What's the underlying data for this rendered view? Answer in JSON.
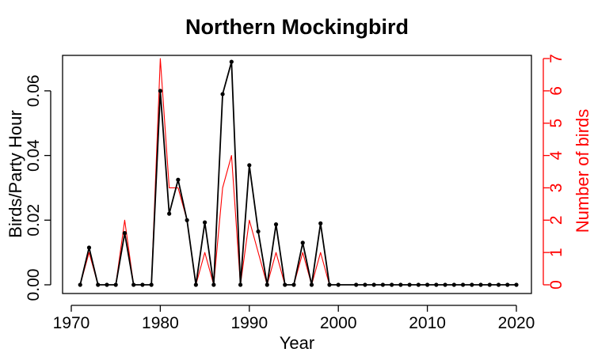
{
  "chart_data": {
    "type": "line",
    "title": "Northern Mockingbird",
    "xlabel": "Year",
    "ylabel": "Birds/Party Hour",
    "y2label": "Number of birds",
    "xlim": [
      1970,
      2020
    ],
    "ylim": [
      0,
      0.07
    ],
    "y2lim": [
      0,
      7
    ],
    "xticks": [
      1970,
      1980,
      1990,
      2000,
      2010,
      2020
    ],
    "yticks": [
      0.0,
      0.02,
      0.04,
      0.06
    ],
    "ytick_labels": [
      "0.00",
      "0.02",
      "0.04",
      "0.06"
    ],
    "y2ticks": [
      0,
      1,
      2,
      3,
      4,
      5,
      6,
      7
    ],
    "grid": false,
    "colors": {
      "primary": "#000000",
      "secondary": "#ff0000"
    },
    "series": [
      {
        "axis": "left",
        "color": "#000000",
        "markers": true,
        "points": [
          [
            1971,
            0
          ],
          [
            1972,
            0.0115
          ],
          [
            1973,
            0
          ],
          [
            1974,
            0
          ],
          [
            1975,
            0
          ],
          [
            1976,
            0.016
          ],
          [
            1977,
            0
          ],
          [
            1978,
            0
          ],
          [
            1979,
            0
          ],
          [
            1980,
            0.06
          ],
          [
            1981,
            0.022
          ],
          [
            1982,
            0.0325
          ],
          [
            1983,
            0.02
          ],
          [
            1984,
            0
          ],
          [
            1985,
            0.0193
          ],
          [
            1986,
            0
          ],
          [
            1987,
            0.059
          ],
          [
            1988,
            0.069
          ],
          [
            1989,
            0
          ],
          [
            1990,
            0.037
          ],
          [
            1991,
            0.0165
          ],
          [
            1992,
            0
          ],
          [
            1993,
            0.0187
          ],
          [
            1994,
            0
          ],
          [
            1995,
            0
          ],
          [
            1996,
            0.013
          ],
          [
            1997,
            0
          ],
          [
            1998,
            0.019
          ],
          [
            1999,
            0
          ],
          [
            2000,
            0
          ],
          [
            2002,
            0
          ],
          [
            2003,
            0
          ],
          [
            2004,
            0
          ],
          [
            2005,
            0
          ],
          [
            2006,
            0
          ],
          [
            2007,
            0
          ],
          [
            2008,
            0
          ],
          [
            2009,
            0
          ],
          [
            2010,
            0
          ],
          [
            2011,
            0
          ],
          [
            2012,
            0
          ],
          [
            2013,
            0
          ],
          [
            2014,
            0
          ],
          [
            2015,
            0
          ],
          [
            2016,
            0
          ],
          [
            2017,
            0
          ],
          [
            2018,
            0
          ],
          [
            2019,
            0
          ],
          [
            2020,
            0
          ]
        ]
      },
      {
        "axis": "right",
        "color": "#ff0000",
        "markers": false,
        "points": [
          [
            1971,
            0
          ],
          [
            1972,
            1
          ],
          [
            1973,
            0
          ],
          [
            1974,
            0
          ],
          [
            1975,
            0
          ],
          [
            1976,
            2
          ],
          [
            1977,
            0
          ],
          [
            1978,
            0
          ],
          [
            1979,
            0
          ],
          [
            1980,
            7
          ],
          [
            1981,
            3
          ],
          [
            1982,
            3
          ],
          [
            1983,
            2
          ],
          [
            1984,
            0
          ],
          [
            1985,
            1
          ],
          [
            1986,
            0
          ],
          [
            1987,
            3
          ],
          [
            1988,
            4
          ],
          [
            1989,
            0
          ],
          [
            1990,
            2
          ],
          [
            1991,
            1
          ],
          [
            1992,
            0
          ],
          [
            1993,
            1
          ],
          [
            1994,
            0
          ],
          [
            1995,
            0
          ],
          [
            1996,
            1
          ],
          [
            1997,
            0
          ],
          [
            1998,
            1
          ],
          [
            1999,
            0
          ],
          [
            2000,
            0
          ],
          [
            2002,
            0
          ],
          [
            2003,
            0
          ],
          [
            2004,
            0
          ],
          [
            2005,
            0
          ],
          [
            2006,
            0
          ],
          [
            2007,
            0
          ],
          [
            2008,
            0
          ],
          [
            2009,
            0
          ],
          [
            2010,
            0
          ],
          [
            2011,
            0
          ],
          [
            2012,
            0
          ],
          [
            2013,
            0
          ],
          [
            2014,
            0
          ],
          [
            2015,
            0
          ],
          [
            2016,
            0
          ],
          [
            2017,
            0
          ],
          [
            2018,
            0
          ],
          [
            2019,
            0
          ],
          [
            2020,
            0
          ]
        ]
      }
    ]
  }
}
